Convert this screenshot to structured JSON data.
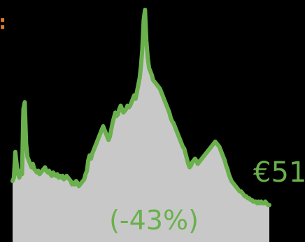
{
  "colors": {
    "background": "#000000",
    "area_fill": "#c8c8c8",
    "line": "#6ab04c",
    "accent_orange": "#e07a2e"
  },
  "header": {
    "top_mark": ":"
  },
  "chart_data": {
    "type": "area",
    "title": "",
    "xlabel": "",
    "ylabel": "",
    "y_domain": [
      0,
      100
    ],
    "values": [
      18,
      20,
      35,
      28,
      22,
      20,
      24,
      22,
      60,
      64,
      40,
      32,
      30,
      28,
      26,
      28,
      25,
      24,
      23,
      24,
      22,
      23,
      24,
      25,
      26,
      24,
      23,
      24,
      22,
      21,
      23,
      22,
      21,
      22,
      20,
      21,
      20,
      21,
      19,
      20,
      21,
      20,
      19,
      18,
      16,
      17,
      16,
      18,
      17,
      15,
      16,
      17,
      18,
      19,
      22,
      24,
      30,
      33,
      31,
      34,
      36,
      38,
      40,
      42,
      44,
      46,
      48,
      50,
      48,
      46,
      44,
      42,
      44,
      48,
      52,
      55,
      58,
      56,
      57,
      60,
      62,
      60,
      58,
      59,
      60,
      62,
      61,
      62,
      64,
      66,
      68,
      66,
      70,
      74,
      78,
      85,
      95,
      112,
      118,
      100,
      90,
      84,
      82,
      80,
      77,
      76,
      75,
      74,
      73,
      72,
      70,
      68,
      66,
      64,
      62,
      60,
      58,
      55,
      53,
      52,
      50,
      48,
      46,
      44,
      42,
      40,
      38,
      37,
      34,
      31,
      28,
      26,
      27,
      29,
      30,
      31,
      30,
      28,
      29,
      30,
      31,
      32,
      33,
      34,
      35,
      36,
      37,
      38,
      39,
      40,
      41,
      40,
      39,
      38,
      36,
      34,
      32,
      30,
      27,
      25,
      22,
      20,
      18,
      17,
      16,
      15,
      14,
      13,
      12,
      12,
      11,
      10,
      9,
      9,
      8,
      8,
      7,
      7,
      6,
      6,
      6,
      5,
      6,
      5,
      6,
      5,
      5,
      6,
      5,
      4,
      4
    ],
    "current_label": "€51",
    "change_label": "(-43%)"
  }
}
